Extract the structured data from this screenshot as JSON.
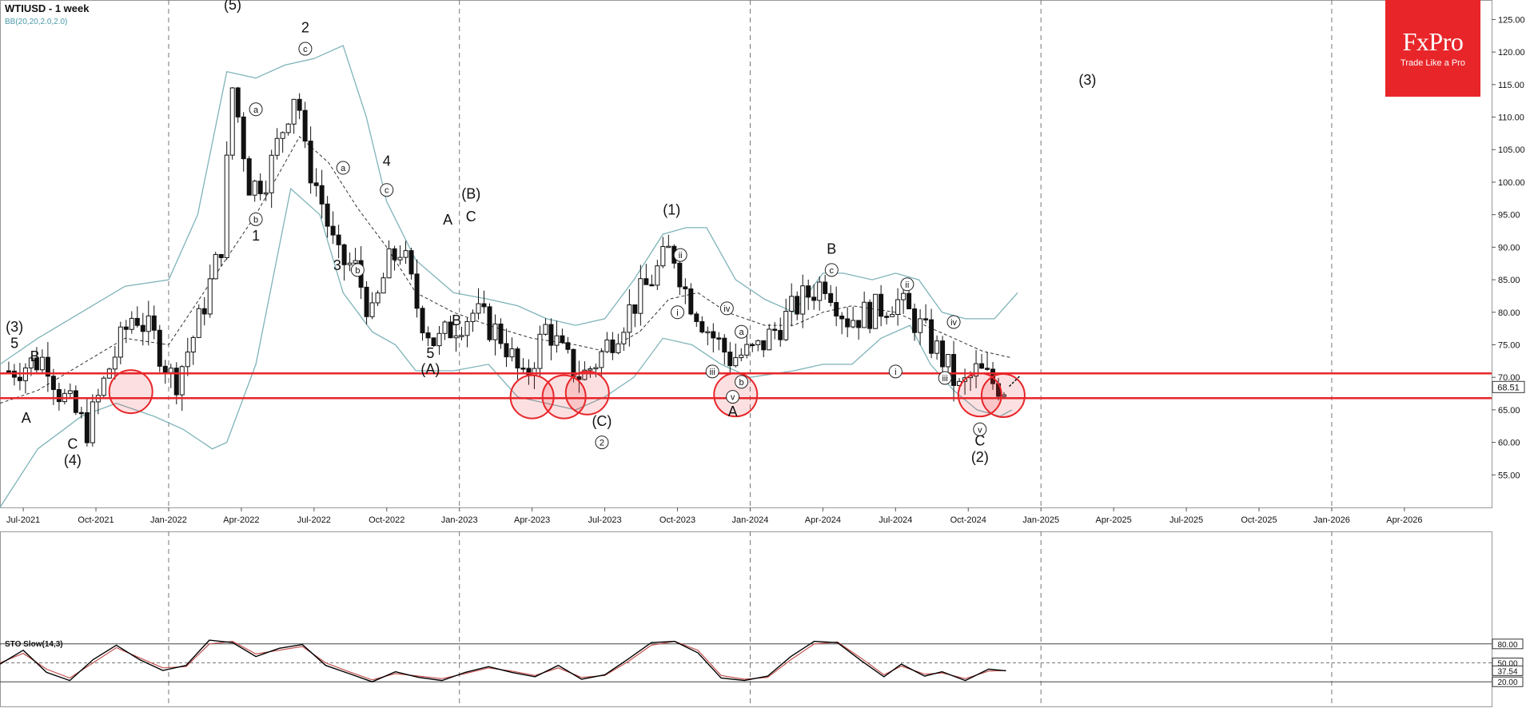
{
  "header": {
    "title": "WTIUSD - 1 week",
    "indicator": "BB(20,20,2.0,2.0)"
  },
  "logo": {
    "brand": "FxPro",
    "tagline": "Trade Like a Pro"
  },
  "stochastic": {
    "label": "STO Slow(14,3)",
    "levels": [
      "80.00",
      "50.00",
      "37.54",
      "20.00"
    ]
  },
  "colors": {
    "bollinger": "#7fb3b8",
    "support_lines": "#e8262a",
    "logo_bg": "#e8262a",
    "sto_main": "#000000",
    "sto_signal": "#c0504d",
    "up_arrow": "#2e8b2e"
  },
  "chart_data": {
    "type": "candlestick",
    "symbol": "WTIUSD",
    "timeframe": "1 week",
    "ylim": [
      50,
      128
    ],
    "y_ticks": [
      "55.00",
      "60.00",
      "65.00",
      "70.00",
      "75.00",
      "80.00",
      "85.00",
      "90.00",
      "95.00",
      "100.00",
      "105.00",
      "110.00",
      "115.00",
      "120.00",
      "125.00"
    ],
    "x_ticks": [
      "Jul-2021",
      "Oct-2021",
      "Jan-2022",
      "Apr-2022",
      "Jul-2022",
      "Oct-2022",
      "Jan-2023",
      "Apr-2023",
      "Jul-2023",
      "Oct-2023",
      "Jan-2024",
      "Apr-2024",
      "Jul-2024",
      "Oct-2024",
      "Jan-2025",
      "Apr-2025",
      "Jul-2025",
      "Oct-2025",
      "Jan-2026",
      "Apr-2026"
    ],
    "current_price": "68.51",
    "support_levels": [
      70.6,
      66.8
    ],
    "close_path": [
      [
        2021.45,
        71
      ],
      [
        2021.58,
        73
      ],
      [
        2021.62,
        68
      ],
      [
        2021.67,
        65
      ],
      [
        2021.72,
        62
      ],
      [
        2021.8,
        72
      ],
      [
        2021.88,
        80
      ],
      [
        2021.95,
        76
      ],
      [
        2022.02,
        69
      ],
      [
        2022.1,
        78
      ],
      [
        2022.18,
        90
      ],
      [
        2022.22,
        115
      ],
      [
        2022.28,
        99
      ],
      [
        2022.34,
        101
      ],
      [
        2022.44,
        115
      ],
      [
        2022.47,
        104
      ],
      [
        2022.52,
        98
      ],
      [
        2022.58,
        88
      ],
      [
        2022.64,
        87
      ],
      [
        2022.7,
        79
      ],
      [
        2022.75,
        87
      ],
      [
        2022.8,
        90
      ],
      [
        2022.86,
        80
      ],
      [
        2022.92,
        75
      ],
      [
        2022.98,
        78
      ],
      [
        2023.05,
        80
      ],
      [
        2023.15,
        76
      ],
      [
        2023.22,
        69
      ],
      [
        2023.3,
        78
      ],
      [
        2023.36,
        73
      ],
      [
        2023.42,
        70
      ],
      [
        2023.48,
        73
      ],
      [
        2023.58,
        80
      ],
      [
        2023.66,
        85
      ],
      [
        2023.73,
        90
      ],
      [
        2023.78,
        83
      ],
      [
        2023.86,
        77
      ],
      [
        2023.93,
        73
      ],
      [
        2024.02,
        74
      ],
      [
        2024.1,
        78
      ],
      [
        2024.18,
        82
      ],
      [
        2024.26,
        85
      ],
      [
        2024.33,
        79
      ],
      [
        2024.42,
        80
      ],
      [
        2024.5,
        82
      ],
      [
        2024.58,
        78
      ],
      [
        2024.66,
        73
      ],
      [
        2024.72,
        68
      ],
      [
        2024.78,
        71
      ],
      [
        2024.84,
        69
      ],
      [
        2024.88,
        68.5
      ]
    ],
    "bb_upper": [
      [
        2021.42,
        72
      ],
      [
        2021.55,
        76
      ],
      [
        2021.7,
        80
      ],
      [
        2021.85,
        84
      ],
      [
        2022.0,
        85
      ],
      [
        2022.1,
        95
      ],
      [
        2022.2,
        117
      ],
      [
        2022.3,
        116
      ],
      [
        2022.4,
        118
      ],
      [
        2022.5,
        119
      ],
      [
        2022.6,
        121
      ],
      [
        2022.68,
        110
      ],
      [
        2022.75,
        97
      ],
      [
        2022.85,
        88
      ],
      [
        2022.98,
        83
      ],
      [
        2023.1,
        82
      ],
      [
        2023.2,
        81
      ],
      [
        2023.3,
        79
      ],
      [
        2023.4,
        78
      ],
      [
        2023.5,
        79
      ],
      [
        2023.6,
        85
      ],
      [
        2023.7,
        92
      ],
      [
        2023.78,
        93
      ],
      [
        2023.85,
        93
      ],
      [
        2023.95,
        85
      ],
      [
        2024.05,
        82
      ],
      [
        2024.15,
        80
      ],
      [
        2024.25,
        86
      ],
      [
        2024.32,
        86
      ],
      [
        2024.42,
        85
      ],
      [
        2024.5,
        86
      ],
      [
        2024.58,
        85
      ],
      [
        2024.66,
        80
      ],
      [
        2024.74,
        79
      ],
      [
        2024.84,
        79
      ],
      [
        2024.92,
        83
      ]
    ],
    "bb_mid": [
      [
        2021.42,
        66
      ],
      [
        2021.55,
        68
      ],
      [
        2021.7,
        72
      ],
      [
        2021.85,
        76
      ],
      [
        2022.0,
        75
      ],
      [
        2022.15,
        85
      ],
      [
        2022.3,
        95
      ],
      [
        2022.45,
        107
      ],
      [
        2022.55,
        103
      ],
      [
        2022.65,
        96
      ],
      [
        2022.75,
        90
      ],
      [
        2022.85,
        83
      ],
      [
        2022.98,
        80
      ],
      [
        2023.1,
        78
      ],
      [
        2023.25,
        76
      ],
      [
        2023.4,
        75
      ],
      [
        2023.5,
        74
      ],
      [
        2023.62,
        77
      ],
      [
        2023.72,
        82
      ],
      [
        2023.82,
        83
      ],
      [
        2023.92,
        80
      ],
      [
        2024.05,
        78
      ],
      [
        2024.15,
        78
      ],
      [
        2024.25,
        80
      ],
      [
        2024.35,
        81
      ],
      [
        2024.5,
        80
      ],
      [
        2024.6,
        78
      ],
      [
        2024.7,
        76
      ],
      [
        2024.8,
        74
      ],
      [
        2024.9,
        73
      ]
    ],
    "bb_lower": [
      [
        2021.42,
        50
      ],
      [
        2021.55,
        59
      ],
      [
        2021.7,
        64
      ],
      [
        2021.82,
        66
      ],
      [
        2021.95,
        64
      ],
      [
        2022.05,
        62
      ],
      [
        2022.15,
        59
      ],
      [
        2022.2,
        60
      ],
      [
        2022.3,
        72
      ],
      [
        2022.42,
        99
      ],
      [
        2022.52,
        95
      ],
      [
        2022.6,
        83
      ],
      [
        2022.7,
        77
      ],
      [
        2022.78,
        75
      ],
      [
        2022.85,
        71
      ],
      [
        2022.98,
        71
      ],
      [
        2023.1,
        72
      ],
      [
        2023.2,
        67
      ],
      [
        2023.3,
        66
      ],
      [
        2023.4,
        65
      ],
      [
        2023.5,
        67
      ],
      [
        2023.6,
        70
      ],
      [
        2023.7,
        76
      ],
      [
        2023.8,
        75
      ],
      [
        2023.9,
        72
      ],
      [
        2024.0,
        70
      ],
      [
        2024.15,
        71
      ],
      [
        2024.25,
        72
      ],
      [
        2024.35,
        72
      ],
      [
        2024.45,
        76
      ],
      [
        2024.55,
        78
      ],
      [
        2024.62,
        72
      ],
      [
        2024.7,
        68
      ],
      [
        2024.78,
        65
      ],
      [
        2024.86,
        64
      ],
      [
        2024.9,
        65
      ]
    ],
    "wave_labels": [
      {
        "t": "(5)",
        "x": 2022.22,
        "y": 126.5
      },
      {
        "t": "2",
        "x": 2022.47,
        "y": 123
      },
      {
        "t": "(3)",
        "x": 2021.47,
        "y": 77
      },
      {
        "t": "5",
        "x": 2021.47,
        "y": 74.5
      },
      {
        "t": "B",
        "x": 2021.54,
        "y": 72.5
      },
      {
        "t": "A",
        "x": 2021.51,
        "y": 63
      },
      {
        "t": "C",
        "x": 2021.67,
        "y": 59
      },
      {
        "t": "(4)",
        "x": 2021.67,
        "y": 56.5
      },
      {
        "t": "1",
        "x": 2022.3,
        "y": 91
      },
      {
        "t": "3",
        "x": 2022.58,
        "y": 86.5
      },
      {
        "t": "4",
        "x": 2022.75,
        "y": 102.5
      },
      {
        "t": "5",
        "x": 2022.9,
        "y": 73
      },
      {
        "t": "(A)",
        "x": 2022.9,
        "y": 70.5
      },
      {
        "t": "A",
        "x": 2022.96,
        "y": 93.5
      },
      {
        "t": "B",
        "x": 2022.99,
        "y": 78
      },
      {
        "t": "(B)",
        "x": 2023.04,
        "y": 97.5
      },
      {
        "t": "C",
        "x": 2023.04,
        "y": 94
      },
      {
        "t": "(C)",
        "x": 2023.49,
        "y": 62.5
      },
      {
        "t": "(1)",
        "x": 2023.73,
        "y": 95
      },
      {
        "t": "A",
        "x": 2023.94,
        "y": 64
      },
      {
        "t": "B",
        "x": 2024.28,
        "y": 89
      },
      {
        "t": "C",
        "x": 2024.79,
        "y": 59.5
      },
      {
        "t": "(2)",
        "x": 2024.79,
        "y": 57
      },
      {
        "t": "(3)",
        "x": 2025.16,
        "y": 115
      }
    ],
    "circled_labels": [
      {
        "t": "a",
        "x": 2022.3,
        "y": 111.2
      },
      {
        "t": "b",
        "x": 2022.3,
        "y": 94.3
      },
      {
        "t": "c",
        "x": 2022.47,
        "y": 120.5
      },
      {
        "t": "a",
        "x": 2022.6,
        "y": 102.2
      },
      {
        "t": "c",
        "x": 2022.75,
        "y": 98.8
      },
      {
        "t": "b",
        "x": 2022.65,
        "y": 86.5
      },
      {
        "t": "2",
        "x": 2023.49,
        "y": 60
      },
      {
        "t": "ii",
        "x": 2023.76,
        "y": 88.8
      },
      {
        "t": "i",
        "x": 2023.75,
        "y": 80
      },
      {
        "t": "iv",
        "x": 2023.92,
        "y": 80.6
      },
      {
        "t": "a",
        "x": 2023.97,
        "y": 77
      },
      {
        "t": "iii",
        "x": 2023.87,
        "y": 70.9
      },
      {
        "t": "v",
        "x": 2023.94,
        "y": 67
      },
      {
        "t": "b",
        "x": 2023.97,
        "y": 69.3
      },
      {
        "t": "c",
        "x": 2024.28,
        "y": 86.5
      },
      {
        "t": "ii",
        "x": 2024.54,
        "y": 84.3
      },
      {
        "t": "i",
        "x": 2024.5,
        "y": 70.9
      },
      {
        "t": "iv",
        "x": 2024.7,
        "y": 78.5
      },
      {
        "t": "iii",
        "x": 2024.67,
        "y": 69.9
      },
      {
        "t": "v",
        "x": 2024.79,
        "y": 62
      }
    ],
    "highlight_circles": [
      [
        2021.87,
        67.8
      ],
      [
        2023.25,
        67
      ],
      [
        2023.36,
        67
      ],
      [
        2023.44,
        67.6
      ],
      [
        2023.95,
        67.3
      ],
      [
        2024.79,
        67.3
      ],
      [
        2024.87,
        67.2
      ]
    ],
    "sto_main": [
      [
        2021.42,
        48
      ],
      [
        2021.5,
        70
      ],
      [
        2021.58,
        35
      ],
      [
        2021.66,
        22
      ],
      [
        2021.74,
        55
      ],
      [
        2021.82,
        78
      ],
      [
        2021.9,
        55
      ],
      [
        2021.98,
        38
      ],
      [
        2022.06,
        46
      ],
      [
        2022.14,
        86
      ],
      [
        2022.22,
        82
      ],
      [
        2022.3,
        60
      ],
      [
        2022.38,
        73
      ],
      [
        2022.46,
        79
      ],
      [
        2022.54,
        46
      ],
      [
        2022.62,
        33
      ],
      [
        2022.7,
        20
      ],
      [
        2022.78,
        36
      ],
      [
        2022.86,
        27
      ],
      [
        2022.94,
        22
      ],
      [
        2023.02,
        35
      ],
      [
        2023.1,
        44
      ],
      [
        2023.18,
        35
      ],
      [
        2023.26,
        28
      ],
      [
        2023.34,
        46
      ],
      [
        2023.42,
        24
      ],
      [
        2023.5,
        31
      ],
      [
        2023.58,
        56
      ],
      [
        2023.66,
        82
      ],
      [
        2023.74,
        84
      ],
      [
        2023.82,
        66
      ],
      [
        2023.9,
        26
      ],
      [
        2023.98,
        22
      ],
      [
        2024.06,
        29
      ],
      [
        2024.14,
        60
      ],
      [
        2024.22,
        84
      ],
      [
        2024.3,
        82
      ],
      [
        2024.38,
        54
      ],
      [
        2024.46,
        28
      ],
      [
        2024.52,
        48
      ],
      [
        2024.6,
        29
      ],
      [
        2024.66,
        36
      ],
      [
        2024.74,
        22
      ],
      [
        2024.82,
        40
      ],
      [
        2024.88,
        37.5
      ]
    ],
    "sto_signal": [
      [
        2021.42,
        50
      ],
      [
        2021.5,
        65
      ],
      [
        2021.58,
        40
      ],
      [
        2021.66,
        26
      ],
      [
        2021.74,
        50
      ],
      [
        2021.82,
        74
      ],
      [
        2021.9,
        58
      ],
      [
        2021.98,
        42
      ],
      [
        2022.06,
        44
      ],
      [
        2022.14,
        80
      ],
      [
        2022.22,
        84
      ],
      [
        2022.3,
        64
      ],
      [
        2022.38,
        70
      ],
      [
        2022.46,
        76
      ],
      [
        2022.54,
        50
      ],
      [
        2022.62,
        36
      ],
      [
        2022.7,
        23
      ],
      [
        2022.78,
        33
      ],
      [
        2022.86,
        29
      ],
      [
        2022.94,
        25
      ],
      [
        2023.02,
        33
      ],
      [
        2023.1,
        42
      ],
      [
        2023.18,
        37
      ],
      [
        2023.26,
        30
      ],
      [
        2023.34,
        42
      ],
      [
        2023.42,
        27
      ],
      [
        2023.5,
        30
      ],
      [
        2023.58,
        52
      ],
      [
        2023.66,
        78
      ],
      [
        2023.74,
        84
      ],
      [
        2023.82,
        70
      ],
      [
        2023.9,
        30
      ],
      [
        2023.98,
        24
      ],
      [
        2024.06,
        27
      ],
      [
        2024.14,
        55
      ],
      [
        2024.22,
        80
      ],
      [
        2024.3,
        83
      ],
      [
        2024.38,
        58
      ],
      [
        2024.46,
        31
      ],
      [
        2024.52,
        45
      ],
      [
        2024.6,
        32
      ],
      [
        2024.66,
        34
      ],
      [
        2024.74,
        25
      ],
      [
        2024.82,
        37
      ],
      [
        2024.88,
        38
      ]
    ]
  }
}
